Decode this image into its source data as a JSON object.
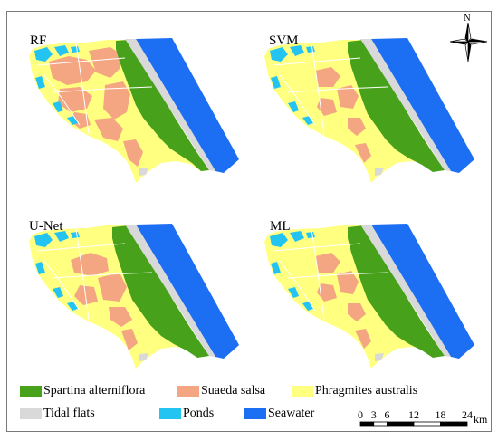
{
  "panels": [
    {
      "label": "RF"
    },
    {
      "label": "SVM"
    },
    {
      "label": "U-Net"
    },
    {
      "label": "ML"
    }
  ],
  "north_arrow": {
    "label": "N"
  },
  "legend": {
    "items": [
      {
        "label": "Spartina alterniflora",
        "color": "#47a11b"
      },
      {
        "label": "Suaeda salsa",
        "color": "#f4a582"
      },
      {
        "label": "Phragmites australis",
        "color": "#ffff80"
      },
      {
        "label": "Tidal flats",
        "color": "#d9d9d9"
      },
      {
        "label": "Ponds",
        "color": "#23c3f2"
      },
      {
        "label": "Seawater",
        "color": "#1c6ef2"
      }
    ]
  },
  "scale_bar": {
    "ticks": [
      0,
      3,
      6,
      12,
      18,
      24
    ],
    "unit": "km"
  }
}
